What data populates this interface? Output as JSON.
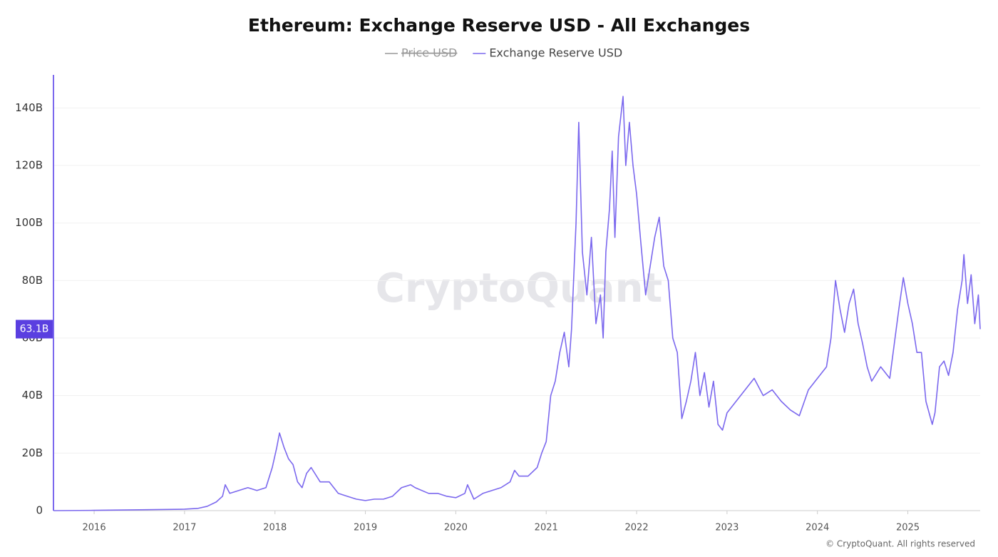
{
  "chart_data": {
    "type": "line",
    "title": "Ethereum: Exchange Reserve USD - All Exchanges",
    "watermark": "CryptoQuant",
    "footer": "© CryptoQuant. All rights reserved",
    "hidden_series": [
      {
        "name": "Price USD",
        "color": "#999999"
      }
    ],
    "series": [
      {
        "name": "Exchange Reserve USD",
        "color": "#7b68ee",
        "x": [
          2015.55,
          2016.0,
          2016.5,
          2017.0,
          2017.15,
          2017.25,
          2017.35,
          2017.42,
          2017.45,
          2017.5,
          2017.6,
          2017.7,
          2017.8,
          2017.9,
          2017.97,
          2018.02,
          2018.05,
          2018.1,
          2018.15,
          2018.2,
          2018.25,
          2018.3,
          2018.35,
          2018.4,
          2018.5,
          2018.6,
          2018.7,
          2018.8,
          2018.9,
          2019.0,
          2019.1,
          2019.2,
          2019.3,
          2019.4,
          2019.5,
          2019.55,
          2019.7,
          2019.8,
          2019.9,
          2020.0,
          2020.1,
          2020.13,
          2020.2,
          2020.3,
          2020.4,
          2020.5,
          2020.6,
          2020.65,
          2020.7,
          2020.8,
          2020.9,
          2020.95,
          2021.0,
          2021.05,
          2021.1,
          2021.15,
          2021.2,
          2021.25,
          2021.28,
          2021.33,
          2021.36,
          2021.4,
          2021.45,
          2021.5,
          2021.55,
          2021.6,
          2021.63,
          2021.66,
          2021.7,
          2021.73,
          2021.76,
          2021.8,
          2021.85,
          2021.88,
          2021.92,
          2021.96,
          2022.0,
          2022.05,
          2022.1,
          2022.15,
          2022.2,
          2022.25,
          2022.3,
          2022.35,
          2022.4,
          2022.45,
          2022.5,
          2022.55,
          2022.6,
          2022.65,
          2022.7,
          2022.75,
          2022.8,
          2022.85,
          2022.9,
          2022.95,
          2023.0,
          2023.1,
          2023.2,
          2023.3,
          2023.4,
          2023.5,
          2023.6,
          2023.7,
          2023.8,
          2023.9,
          2024.0,
          2024.1,
          2024.15,
          2024.2,
          2024.25,
          2024.3,
          2024.35,
          2024.4,
          2024.45,
          2024.5,
          2024.55,
          2024.6,
          2024.7,
          2024.8,
          2024.85,
          2024.9,
          2024.95,
          2025.0,
          2025.05,
          2025.1,
          2025.15,
          2025.2,
          2025.27,
          2025.3,
          2025.35,
          2025.4,
          2025.45,
          2025.5,
          2025.55,
          2025.6,
          2025.62,
          2025.66,
          2025.7,
          2025.74,
          2025.78,
          2025.8
        ],
        "values": [
          0,
          0.1,
          0.3,
          0.5,
          0.8,
          1.5,
          3,
          5,
          9,
          6,
          7,
          8,
          7,
          8,
          15,
          22,
          27,
          22,
          18,
          16,
          10,
          8,
          13,
          15,
          10,
          10,
          6,
          5,
          4,
          3.5,
          4,
          4,
          5,
          8,
          9,
          8,
          6,
          6,
          5,
          4.5,
          6,
          9,
          4,
          6,
          7,
          8,
          10,
          14,
          12,
          12,
          15,
          20,
          24,
          40,
          45,
          55,
          62,
          50,
          63,
          100,
          135,
          90,
          75,
          95,
          65,
          75,
          60,
          90,
          105,
          125,
          95,
          130,
          144,
          120,
          135,
          120,
          110,
          92,
          75,
          85,
          95,
          102,
          85,
          80,
          60,
          55,
          32,
          38,
          45,
          55,
          40,
          48,
          36,
          45,
          30,
          28,
          34,
          38,
          42,
          46,
          40,
          42,
          38,
          35,
          33,
          42,
          46,
          50,
          60,
          80,
          70,
          62,
          72,
          77,
          65,
          58,
          50,
          45,
          50,
          46,
          58,
          70,
          81,
          72,
          65,
          55,
          55,
          38,
          30,
          34,
          50,
          52,
          47,
          55,
          70,
          80,
          89,
          72,
          82,
          65,
          75,
          63.1
        ]
      }
    ],
    "current_value": 63.1,
    "current_label": "63.1B",
    "xlim": [
      2015.55,
      2025.8
    ],
    "xticks": [
      2016,
      2017,
      2018,
      2019,
      2020,
      2021,
      2022,
      2023,
      2024,
      2025
    ],
    "ylim": [
      0,
      151
    ],
    "yticks": [
      0,
      {
        "value": 20,
        "label": "20B"
      },
      {
        "value": 40,
        "label": "40B"
      },
      {
        "value": 60,
        "label": "60B"
      },
      {
        "value": 80,
        "label": "80B"
      },
      {
        "value": 100,
        "label": "100B"
      },
      {
        "value": 120,
        "label": "120B"
      },
      {
        "value": 140,
        "label": "140B"
      }
    ],
    "grid": true
  }
}
